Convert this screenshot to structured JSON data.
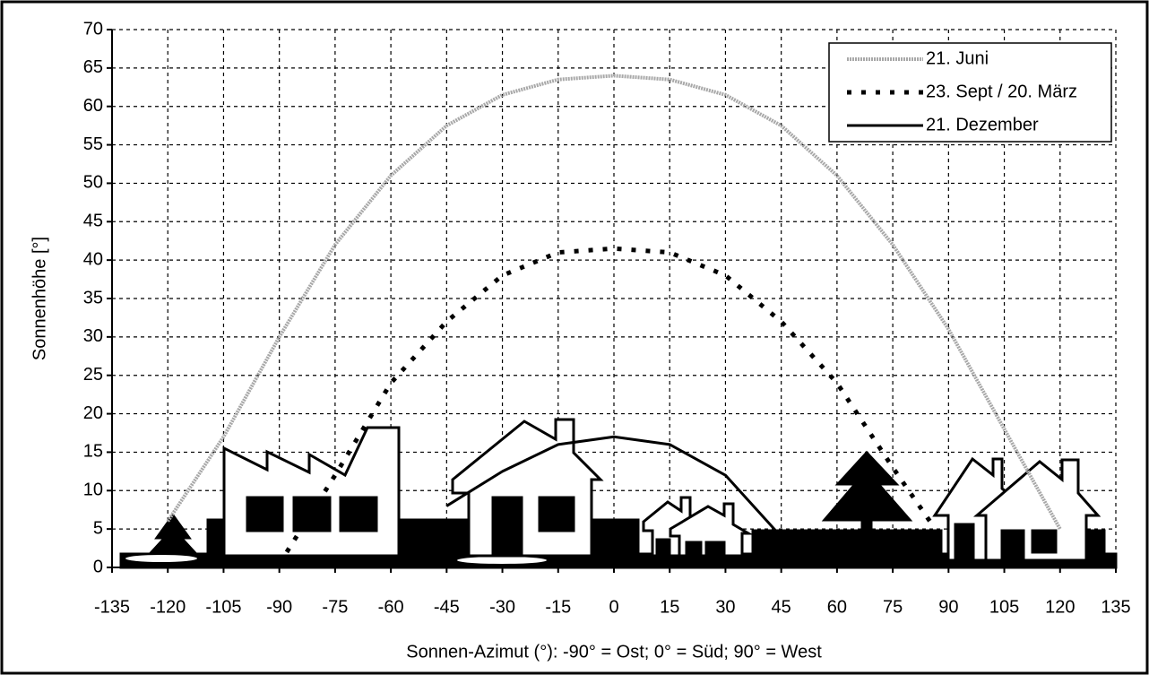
{
  "chart_data": {
    "type": "line",
    "x_label": "Sonnen-Azimut (°):  -90° = Ost;  0° = Süd;  90° = West",
    "y_label": "Sonnenhöhe [°]",
    "series": [
      {
        "name": "21. Juni",
        "color": "#a8a8a8",
        "line_style": "dotted",
        "x": [
          -120,
          -105,
          -90,
          -75,
          -60,
          -45,
          -30,
          -15,
          0,
          15,
          30,
          45,
          60,
          75,
          90,
          105,
          120
        ],
        "values": [
          6,
          17,
          30,
          42,
          51,
          57.5,
          61.5,
          63.5,
          64,
          63.5,
          61.5,
          57.5,
          51,
          42,
          31,
          18,
          5
        ]
      },
      {
        "name": "23. Sept / 20. März",
        "color": "#000000",
        "line_style": "dashed",
        "x": [
          -88,
          -75,
          -60,
          -45,
          -30,
          -15,
          0,
          15,
          30,
          45,
          60,
          75,
          85
        ],
        "values": [
          2,
          12,
          24,
          32,
          38,
          41,
          41.5,
          41,
          38,
          32,
          24,
          13,
          6
        ]
      },
      {
        "name": "21. Dezember",
        "color": "#000000",
        "line_style": "solid",
        "x": [
          -45,
          -30,
          -15,
          0,
          15,
          30,
          45
        ],
        "values": [
          8,
          12.5,
          16,
          17,
          16,
          12,
          4
        ]
      }
    ],
    "xlim": [
      -135,
      135
    ],
    "xticks": [
      -135,
      -120,
      -105,
      -90,
      -75,
      -60,
      -45,
      -30,
      -15,
      0,
      15,
      30,
      45,
      60,
      75,
      90,
      105,
      120,
      135
    ],
    "ylim": [
      0,
      70
    ],
    "yticks": [
      0,
      5,
      10,
      15,
      20,
      25,
      30,
      35,
      40,
      45,
      50,
      55,
      60,
      65,
      70
    ],
    "grid": true,
    "legend": "top-right"
  }
}
